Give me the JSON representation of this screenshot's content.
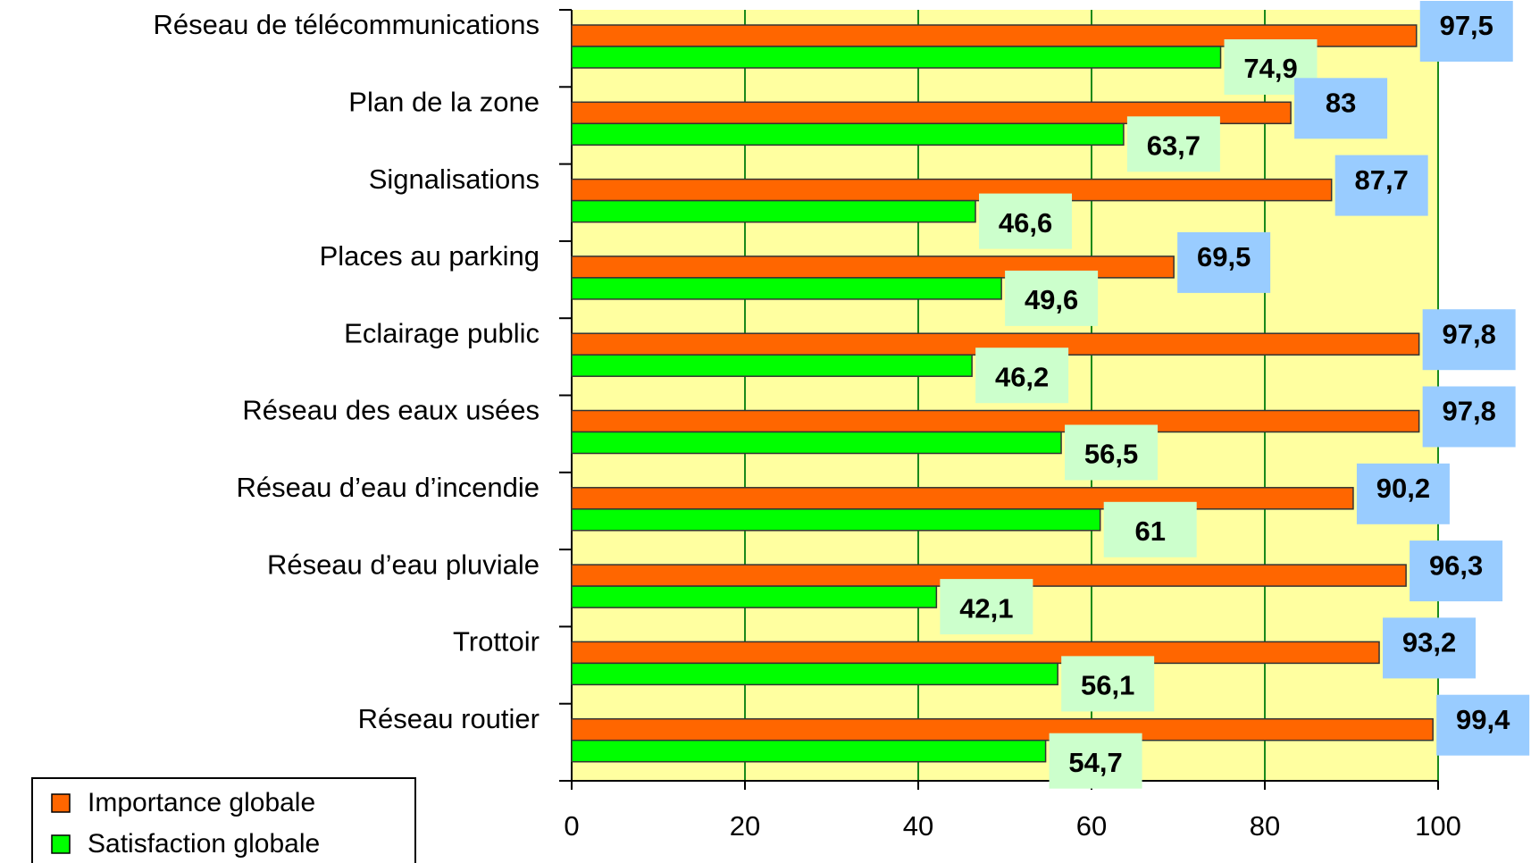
{
  "chart_data": {
    "type": "barh",
    "categories": [
      "Réseau de télécommunications",
      "Plan de la zone",
      "Signalisations",
      "Places au parking",
      "Eclairage public",
      "Réseau des eaux usées",
      "Réseau d’eau d’incendie",
      "Réseau d’eau pluviale",
      "Trottoir",
      "Réseau routier"
    ],
    "series": [
      {
        "name": "Importance globale",
        "color": "#ff6600",
        "label_color": "#99ccff",
        "values": [
          97.5,
          83,
          87.7,
          69.5,
          97.8,
          97.8,
          90.2,
          96.3,
          93.2,
          99.4
        ],
        "value_labels": [
          "97,5",
          "83",
          "87,7",
          "69,5",
          "97,8",
          "97,8",
          "90,2",
          "96,3",
          "93,2",
          "99,4"
        ]
      },
      {
        "name": "Satisfaction globale",
        "color": "#00ff00",
        "label_color": "#ccffcc",
        "values": [
          74.9,
          63.7,
          46.6,
          49.6,
          46.2,
          56.5,
          61,
          42.1,
          56.1,
          54.7
        ],
        "value_labels": [
          "74,9",
          "63,7",
          "46,6",
          "49,6",
          "46,2",
          "56,5",
          "61",
          "42,1",
          "56,1",
          "54,7"
        ]
      }
    ],
    "xlim": [
      0,
      100
    ],
    "xticks": [
      0,
      20,
      40,
      60,
      80,
      100
    ],
    "grid": true,
    "legend": "lower left"
  }
}
